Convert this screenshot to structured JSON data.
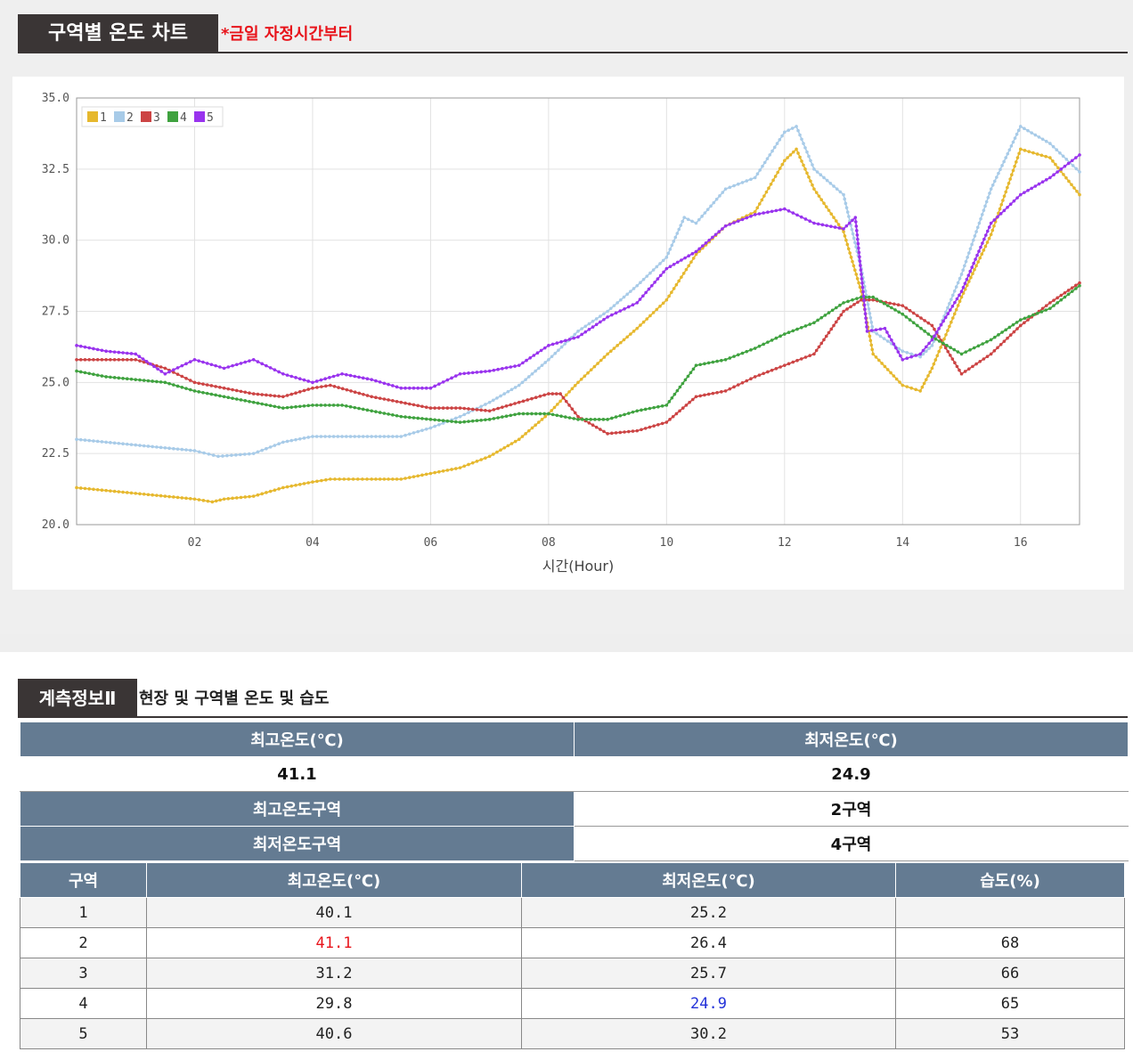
{
  "chart_section": {
    "title": "구역별 온도 차트",
    "note": "*금일 자정시간부터"
  },
  "chart_data": {
    "type": "line",
    "title": "",
    "xlabel": "시간(Hour)",
    "ylabel": "",
    "xlim": [
      0,
      17
    ],
    "ylim": [
      20,
      35
    ],
    "x_ticks": [
      2,
      4,
      6,
      8,
      10,
      12,
      14,
      16
    ],
    "x_tick_labels": [
      "02",
      "04",
      "06",
      "08",
      "10",
      "12",
      "14",
      "16"
    ],
    "y_ticks": [
      20.0,
      22.5,
      25.0,
      27.5,
      30.0,
      32.5,
      35.0
    ],
    "y_tick_labels": [
      "20.0",
      "22.5",
      "25.0",
      "27.5",
      "30.0",
      "32.5",
      "35.0"
    ],
    "grid": true,
    "legend_position": "top-left",
    "series": [
      {
        "name": "1",
        "color": "#e6b82e",
        "x": [
          0,
          0.5,
          1,
          1.5,
          2,
          2.3,
          2.5,
          3,
          3.5,
          4,
          4.3,
          5,
          5.5,
          6,
          6.5,
          7,
          7.5,
          8,
          8.5,
          9,
          9.5,
          10,
          10.5,
          11,
          11.5,
          12,
          12.2,
          12.5,
          13,
          13.3,
          13.5,
          14,
          14.3,
          14.5,
          15,
          15.5,
          16,
          16.5,
          17
        ],
        "y": [
          21.3,
          21.2,
          21.1,
          21.0,
          20.9,
          20.8,
          20.9,
          21.0,
          21.3,
          21.5,
          21.6,
          21.6,
          21.6,
          21.8,
          22.0,
          22.4,
          23.0,
          23.9,
          25.0,
          26.0,
          26.9,
          27.9,
          29.5,
          30.5,
          31.0,
          32.8,
          33.2,
          31.8,
          30.3,
          28.2,
          26.0,
          24.9,
          24.7,
          25.5,
          28.0,
          30.2,
          33.2,
          32.9,
          31.6
        ]
      },
      {
        "name": "2",
        "color": "#a8cbe8",
        "x": [
          0,
          0.5,
          1,
          1.5,
          2,
          2.4,
          3,
          3.5,
          4,
          4.5,
          5,
          5.5,
          6,
          6.5,
          7,
          7.5,
          8,
          8.5,
          9,
          9.5,
          10,
          10.3,
          10.5,
          11,
          11.5,
          12,
          12.2,
          12.5,
          13,
          13.3,
          13.5,
          14,
          14.3,
          14.5,
          15,
          15.5,
          16,
          16.5,
          17
        ],
        "y": [
          23.0,
          22.9,
          22.8,
          22.7,
          22.6,
          22.4,
          22.5,
          22.9,
          23.1,
          23.1,
          23.1,
          23.1,
          23.4,
          23.8,
          24.3,
          24.9,
          25.8,
          26.8,
          27.5,
          28.4,
          29.4,
          30.8,
          30.6,
          31.8,
          32.2,
          33.8,
          34.0,
          32.5,
          31.6,
          29.0,
          26.8,
          26.1,
          25.9,
          26.3,
          28.8,
          31.8,
          34.0,
          33.4,
          32.4
        ]
      },
      {
        "name": "3",
        "color": "#cc4444",
        "x": [
          0,
          0.5,
          1,
          1.5,
          2,
          2.5,
          3,
          3.5,
          4,
          4.3,
          5,
          5.5,
          6,
          6.5,
          7,
          7.5,
          8,
          8.2,
          8.5,
          9,
          9.5,
          10,
          10.5,
          11,
          11.5,
          12,
          12.5,
          13,
          13.3,
          13.5,
          14,
          14.5,
          15,
          15.5,
          16,
          16.5,
          17
        ],
        "y": [
          25.8,
          25.8,
          25.8,
          25.5,
          25.0,
          24.8,
          24.6,
          24.5,
          24.8,
          24.9,
          24.5,
          24.3,
          24.1,
          24.1,
          24.0,
          24.3,
          24.6,
          24.6,
          23.8,
          23.2,
          23.3,
          23.6,
          24.5,
          24.7,
          25.2,
          25.6,
          26.0,
          27.5,
          27.9,
          27.9,
          27.7,
          27.0,
          25.3,
          26.0,
          27.0,
          27.8,
          28.5
        ]
      },
      {
        "name": "4",
        "color": "#3fa23f",
        "x": [
          0,
          0.5,
          1,
          1.5,
          2,
          2.5,
          3,
          3.5,
          4,
          4.5,
          5,
          5.5,
          6,
          6.5,
          7,
          7.5,
          8,
          8.5,
          9,
          9.5,
          10,
          10.5,
          11,
          11.5,
          12,
          12.5,
          13,
          13.3,
          13.5,
          14,
          14.5,
          15,
          15.5,
          16,
          16.5,
          17
        ],
        "y": [
          25.4,
          25.2,
          25.1,
          25.0,
          24.7,
          24.5,
          24.3,
          24.1,
          24.2,
          24.2,
          24.0,
          23.8,
          23.7,
          23.6,
          23.7,
          23.9,
          23.9,
          23.7,
          23.7,
          24.0,
          24.2,
          25.6,
          25.8,
          26.2,
          26.7,
          27.1,
          27.8,
          28.0,
          28.0,
          27.4,
          26.6,
          26.0,
          26.5,
          27.2,
          27.6,
          28.4
        ]
      },
      {
        "name": "5",
        "color": "#9933ee",
        "x": [
          0,
          0.5,
          1,
          1.5,
          2,
          2.5,
          3,
          3.5,
          4,
          4.5,
          5,
          5.5,
          6,
          6.5,
          7,
          7.5,
          8,
          8.5,
          9,
          9.5,
          10,
          10.5,
          11,
          11.5,
          12,
          12.5,
          13,
          13.2,
          13.4,
          13.7,
          14,
          14.3,
          14.5,
          15,
          15.5,
          16,
          16.5,
          17
        ],
        "y": [
          26.3,
          26.1,
          26.0,
          25.3,
          25.8,
          25.5,
          25.8,
          25.3,
          25.0,
          25.3,
          25.1,
          24.8,
          24.8,
          25.3,
          25.4,
          25.6,
          26.3,
          26.6,
          27.3,
          27.8,
          29.0,
          29.6,
          30.5,
          30.9,
          31.1,
          30.6,
          30.4,
          30.8,
          26.8,
          26.9,
          25.8,
          26.0,
          26.5,
          28.2,
          30.6,
          31.6,
          32.2,
          33.0
        ]
      }
    ]
  },
  "info_section": {
    "title": "계측정보Ⅱ",
    "desc": "현장 및 구역별 온도 및 습도"
  },
  "summary": {
    "max_temp_label": "최고온도(℃)",
    "min_temp_label": "최저온도(℃)",
    "max_temp_value": "41.1",
    "min_temp_value": "24.9",
    "max_zone_label": "최고온도구역",
    "max_zone_value": "2구역",
    "min_zone_label": "최저온도구역",
    "min_zone_value": "4구역"
  },
  "zone_table": {
    "headers": [
      "구역",
      "최고온도(℃)",
      "최저온도(℃)",
      "습도(%)"
    ],
    "rows": [
      [
        "1",
        "40.1",
        "25.2",
        ""
      ],
      [
        "2",
        "41.1",
        "26.4",
        "68"
      ],
      [
        "3",
        "31.2",
        "25.7",
        "66"
      ],
      [
        "4",
        "29.8",
        "24.9",
        "65"
      ],
      [
        "5",
        "40.6",
        "30.2",
        "53"
      ]
    ]
  }
}
